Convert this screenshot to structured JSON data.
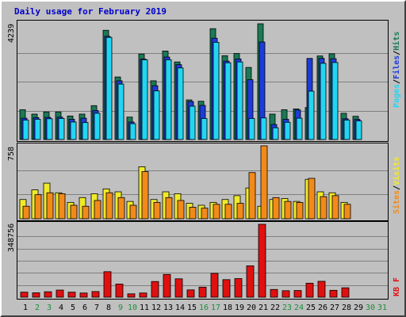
{
  "window": {
    "title": "Daily usage for February 2019"
  },
  "colors": {
    "background": "#c0c0c0",
    "title": "#0000cc",
    "hits": "#1a7a55",
    "files": "#1d3bd8",
    "pages": "#22d6f2",
    "visits": "#f0ea2a",
    "sites": "#f28a1a",
    "kbytes": "#e01010",
    "weekday_label": "#000000",
    "weekend_label": "#1a8f3a",
    "gridline": "#7f7f7f"
  },
  "chart_data": [
    {
      "type": "bar",
      "name": "hits-files-pages",
      "x": [
        1,
        2,
        3,
        4,
        5,
        6,
        7,
        8,
        9,
        10,
        11,
        12,
        13,
        14,
        15,
        16,
        17,
        18,
        19,
        20,
        21,
        22,
        23,
        24,
        25,
        26,
        27,
        28,
        29,
        30,
        31
      ],
      "ymax_label": "4239",
      "ylim": [
        0,
        4239
      ],
      "legend": [
        "Pages",
        "Files",
        "Hits"
      ],
      "series": [
        {
          "name": "Hits",
          "values": [
            1090,
            930,
            1010,
            1010,
            860,
            930,
            1240,
            4000,
            2290,
            820,
            3130,
            2150,
            3240,
            2840,
            1450,
            1400,
            4060,
            3070,
            3150,
            2640,
            4239,
            930,
            1090,
            1120,
            1170,
            3060,
            3140,
            960,
            850,
            0,
            0
          ]
        },
        {
          "name": "Files",
          "values": [
            780,
            800,
            810,
            820,
            740,
            780,
            1060,
            3780,
            2150,
            640,
            2950,
            1970,
            3020,
            2740,
            1390,
            1250,
            3710,
            2870,
            2950,
            2190,
            3570,
            550,
            740,
            1080,
            2970,
            2970,
            2960,
            760,
            740,
            0,
            0
          ]
        },
        {
          "name": "Pages",
          "values": [
            710,
            740,
            760,
            770,
            640,
            620,
            960,
            3740,
            2030,
            580,
            2920,
            1780,
            2920,
            2620,
            1220,
            770,
            3560,
            2810,
            2840,
            770,
            790,
            430,
            630,
            780,
            1770,
            2790,
            2820,
            710,
            680,
            0,
            0
          ]
        }
      ]
    },
    {
      "type": "bar",
      "name": "visits-sites",
      "x": [
        1,
        2,
        3,
        4,
        5,
        6,
        7,
        8,
        9,
        10,
        11,
        12,
        13,
        14,
        15,
        16,
        17,
        18,
        19,
        20,
        21,
        22,
        23,
        24,
        25,
        26,
        27,
        28,
        29,
        30,
        31
      ],
      "ymax_label": "758",
      "ylim": [
        0,
        758
      ],
      "legend": [
        "Sites",
        "Visits"
      ],
      "series": [
        {
          "name": "Visits",
          "values": [
            200,
            300,
            370,
            270,
            170,
            220,
            260,
            310,
            280,
            180,
            540,
            200,
            280,
            260,
            160,
            140,
            170,
            200,
            240,
            320,
            130,
            200,
            210,
            180,
            410,
            280,
            270,
            170,
            0,
            0,
            0
          ]
        },
        {
          "name": "Sites",
          "values": [
            130,
            250,
            270,
            260,
            140,
            130,
            190,
            270,
            220,
            140,
            490,
            170,
            220,
            190,
            120,
            110,
            150,
            150,
            160,
            480,
            758,
            220,
            180,
            170,
            420,
            230,
            240,
            150,
            0,
            0,
            0
          ]
        }
      ]
    },
    {
      "type": "bar",
      "name": "kbytes",
      "x": [
        1,
        2,
        3,
        4,
        5,
        6,
        7,
        8,
        9,
        10,
        11,
        12,
        13,
        14,
        15,
        16,
        17,
        18,
        19,
        20,
        21,
        22,
        23,
        24,
        25,
        26,
        27,
        28,
        29,
        30,
        31
      ],
      "ymax_label": "348756",
      "ylim": [
        0,
        348756
      ],
      "legend": [
        "KB F"
      ],
      "series": [
        {
          "name": "KB F",
          "values": [
            24000,
            21000,
            26000,
            34000,
            24000,
            20000,
            27000,
            122000,
            63000,
            16000,
            20000,
            75000,
            109000,
            88000,
            35000,
            48000,
            114000,
            84000,
            89000,
            150000,
            348756,
            37000,
            31000,
            32000,
            67000,
            76000,
            33000,
            45000,
            0,
            0,
            0
          ]
        }
      ]
    }
  ]
}
